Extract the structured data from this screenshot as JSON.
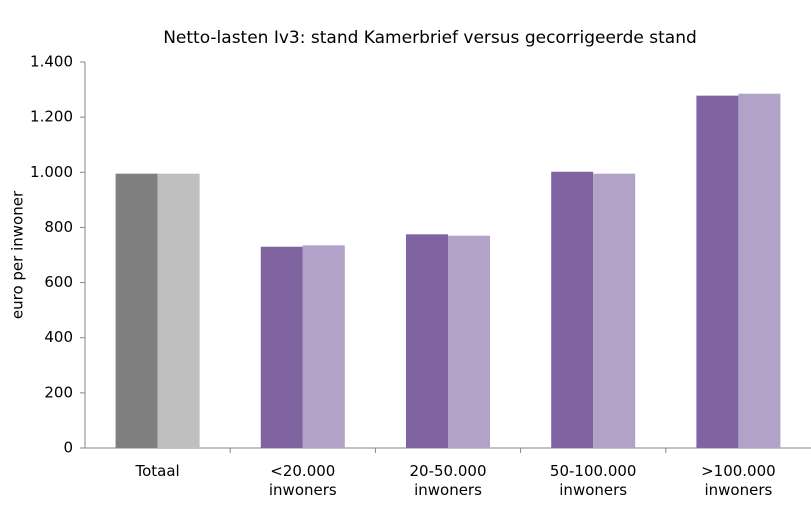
{
  "chart_data": {
    "type": "bar",
    "title": "Netto-lasten Iv3: stand Kamerbrief versus gecorrigeerde stand",
    "y_label": "euro per inwoner",
    "categories": [
      "Totaal",
      "<20.000 inwoners",
      "20-50.000 inwoners",
      "50-100.000 inwoners",
      ">100.000 inwoners"
    ],
    "series": [
      {
        "colors": [
          "#7f7f7f",
          "#8064a2",
          "#8064a2",
          "#8064a2",
          "#8064a2"
        ],
        "values": [
          995,
          730,
          775,
          1002,
          1278
        ]
      },
      {
        "colors": [
          "#bfbfbf",
          "#b3a2c7",
          "#b3a2c7",
          "#b3a2c7",
          "#b3a2c7"
        ],
        "values": [
          995,
          735,
          770,
          995,
          1285
        ]
      }
    ],
    "ylim": [
      0,
      1400
    ],
    "yticks": [
      0,
      200,
      400,
      600,
      800,
      {
        "value": 1000,
        "label": "1.000"
      },
      {
        "value": 1200,
        "label": "1.200"
      },
      {
        "value": 1400,
        "label": "1.400"
      }
    ],
    "grid": false
  }
}
